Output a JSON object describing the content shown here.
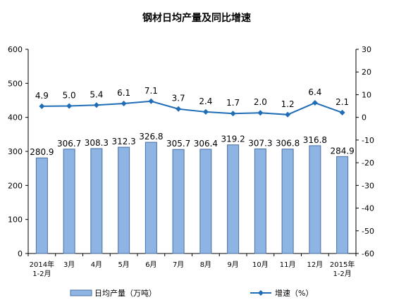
{
  "chart_data": {
    "type": "bar+line",
    "title": "钢材日均产量及同比增速",
    "categories": [
      [
        "2014年",
        "1-2月"
      ],
      [
        "3月"
      ],
      [
        "4月"
      ],
      [
        "5月"
      ],
      [
        "6月"
      ],
      [
        "7月"
      ],
      [
        "8月"
      ],
      [
        "9月"
      ],
      [
        "10月"
      ],
      [
        "11月"
      ],
      [
        "12月"
      ],
      [
        "2015年",
        "1-2月"
      ]
    ],
    "series": [
      {
        "name": "日均产量（万吨）",
        "type": "bar",
        "axis": "left",
        "values": [
          280.9,
          306.7,
          308.3,
          312.3,
          326.8,
          305.7,
          306.4,
          319.2,
          307.3,
          306.8,
          316.8,
          284.9
        ],
        "labels": [
          "280.9",
          "306.7",
          "308.3",
          "312.3",
          "326.8",
          "305.7",
          "306.4",
          "319.2",
          "307.3",
          "306.8",
          "316.8",
          "284.9"
        ],
        "color": "#8db4e2",
        "border": "#4a6fa5"
      },
      {
        "name": "增速（%）",
        "type": "line",
        "axis": "right",
        "values": [
          4.9,
          5.0,
          5.4,
          6.1,
          7.1,
          3.7,
          2.4,
          1.7,
          2.0,
          1.2,
          6.4,
          2.1
        ],
        "labels": [
          "4.9",
          "5.0",
          "5.4",
          "6.1",
          "7.1",
          "3.7",
          "2.4",
          "1.7",
          "2.0",
          "1.2",
          "6.4",
          "2.1"
        ],
        "color": "#1f6db6"
      }
    ],
    "y_left": {
      "min": 0,
      "max": 600,
      "ticks": [
        "0",
        "100",
        "200",
        "300",
        "400",
        "500",
        "600"
      ]
    },
    "y_right": {
      "min": -60,
      "max": 30,
      "ticks": [
        "-60",
        "-50",
        "-40",
        "-30",
        "-20",
        "-10",
        "0",
        "10",
        "20",
        "30"
      ]
    },
    "grid": false,
    "legend": "bottom"
  }
}
